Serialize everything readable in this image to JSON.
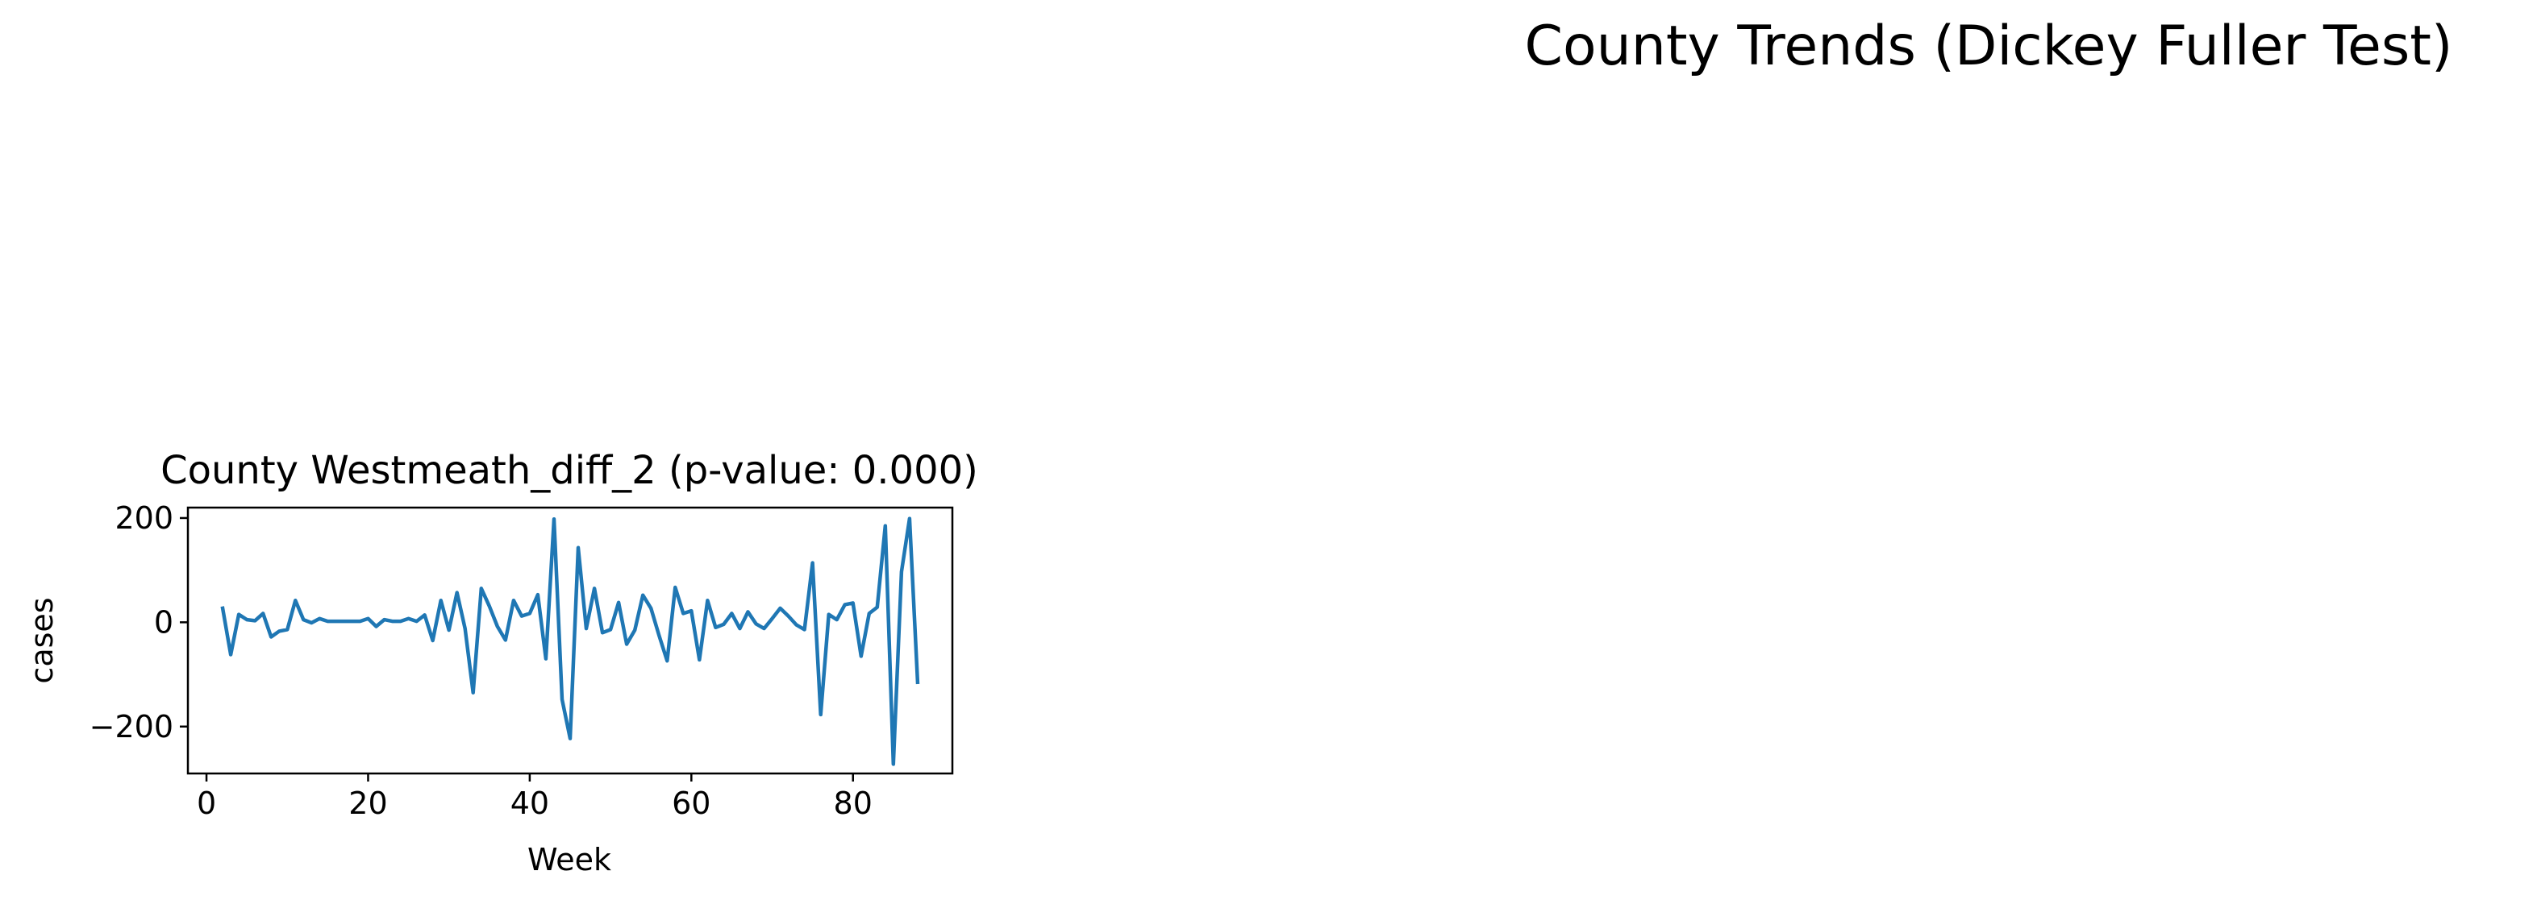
{
  "figure": {
    "suptitle": "County Trends (Dickey Fuller Test)"
  },
  "chart_data": {
    "type": "line",
    "title": "County Westmeath_diff_2 (p-value: 0.000)",
    "xlabel": "Week",
    "ylabel": "cases",
    "xlim": [
      -2.3,
      92.3
    ],
    "ylim": [
      -290,
      220
    ],
    "xticks": [
      0,
      20,
      40,
      60,
      80
    ],
    "xtick_labels": [
      "0",
      "20",
      "40",
      "60",
      "80"
    ],
    "yticks": [
      -200,
      0,
      200
    ],
    "ytick_labels": [
      "−200",
      "0",
      "200"
    ],
    "grid": false,
    "line_color": "#1f77b4",
    "series": [
      {
        "x": [
          2,
          3,
          4,
          5,
          6,
          7,
          8,
          9,
          10,
          11,
          12,
          13,
          14,
          15,
          16,
          17,
          18,
          19,
          20,
          21,
          22,
          23,
          24,
          25,
          26,
          27,
          28,
          29,
          30,
          31,
          32,
          33,
          34,
          35,
          36,
          37,
          38,
          39,
          40,
          41,
          42,
          43,
          44,
          45,
          46,
          47,
          48,
          49,
          50,
          51,
          52,
          53,
          54,
          55,
          56,
          57,
          58,
          59,
          60,
          61,
          62,
          63,
          64,
          65,
          66,
          67,
          68,
          69,
          70,
          71,
          72,
          73,
          74,
          75,
          76,
          77,
          78,
          79,
          80,
          81,
          82,
          83,
          84,
          85,
          86,
          87,
          88
        ],
        "values": [
          27,
          -62,
          15,
          5,
          3,
          17,
          -28,
          -17,
          -14,
          42,
          5,
          -1,
          7,
          2,
          2,
          2,
          2,
          2,
          7,
          -8,
          5,
          2,
          2,
          7,
          2,
          14,
          -35,
          42,
          -15,
          57,
          -12,
          -135,
          65,
          31,
          -8,
          -34,
          42,
          12,
          17,
          53,
          -70,
          198,
          -148,
          -223,
          143,
          -12,
          65,
          -20,
          -14,
          38,
          -42,
          -15,
          52,
          27,
          -25,
          -74,
          67,
          17,
          22,
          -72,
          42,
          -10,
          -4,
          17,
          -12,
          20,
          -3,
          -12,
          7,
          27,
          12,
          -5,
          -14,
          114,
          -177,
          15,
          5,
          34,
          37,
          -65,
          17,
          29,
          185,
          -272,
          97,
          199,
          -115
        ]
      }
    ]
  }
}
